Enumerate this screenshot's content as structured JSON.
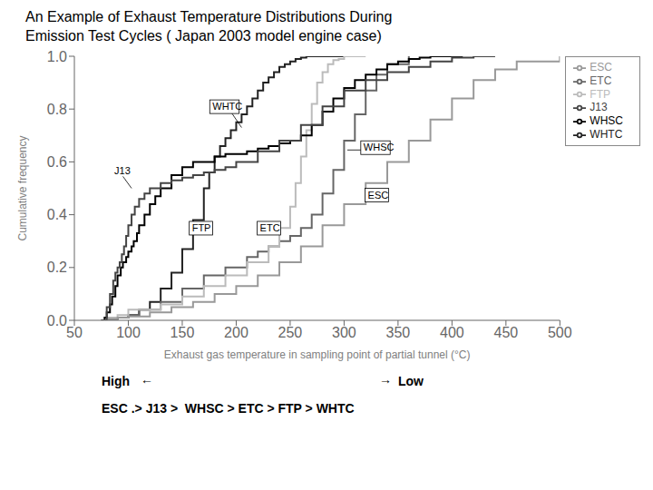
{
  "chart_data": {
    "type": "line",
    "title": "An Example of Exhaust Temperature Distributions During",
    "subtitle": "Emission Test Cycles ( Japan 2003 model engine case)",
    "x_label": "Exhaust gas temperature in sampling point of partial tunnel (°C)",
    "y_label": "Cumulative frequency",
    "xlim": [
      50,
      500
    ],
    "ylim": [
      0,
      1.0
    ],
    "xticks": [
      50,
      100,
      150,
      200,
      250,
      300,
      350,
      400,
      450,
      500
    ],
    "yticks": [
      {
        "value": 0,
        "label": "0.0"
      },
      0.2,
      0.4,
      0.6,
      0.8,
      {
        "value": 1.0,
        "label": "1.0"
      }
    ],
    "grid": false,
    "legend": "right",
    "line_style": "step",
    "series": [
      {
        "name": "WHTC",
        "color": "#222222",
        "x": [
          75,
          80,
          90,
          100,
          110,
          120,
          130,
          140,
          150,
          160,
          170,
          175,
          180,
          185,
          190,
          195,
          200,
          205,
          210,
          215,
          220,
          225,
          230,
          235,
          240,
          245,
          250,
          255,
          260,
          265,
          270,
          280,
          300
        ],
        "values": [
          0.0,
          0.005,
          0.01,
          0.02,
          0.04,
          0.07,
          0.12,
          0.18,
          0.27,
          0.38,
          0.5,
          0.56,
          0.62,
          0.66,
          0.69,
          0.72,
          0.75,
          0.78,
          0.81,
          0.84,
          0.87,
          0.9,
          0.92,
          0.94,
          0.96,
          0.97,
          0.98,
          0.99,
          0.995,
          1.0,
          1.0,
          1.0,
          1.0
        ]
      },
      {
        "name": "ETC",
        "color": "#666666",
        "x": [
          75,
          80,
          90,
          100,
          110,
          130,
          150,
          170,
          190,
          210,
          220,
          230,
          240,
          250,
          260,
          270,
          280,
          290,
          300,
          310,
          320,
          330,
          340,
          360
        ],
        "values": [
          0.0,
          0.005,
          0.01,
          0.02,
          0.04,
          0.07,
          0.12,
          0.17,
          0.2,
          0.24,
          0.26,
          0.28,
          0.3,
          0.32,
          0.35,
          0.4,
          0.48,
          0.57,
          0.68,
          0.78,
          0.87,
          0.93,
          0.97,
          1.0
        ]
      },
      {
        "name": "FTP",
        "color": "#bbbbbb",
        "x": [
          75,
          80,
          90,
          100,
          130,
          150,
          170,
          190,
          210,
          230,
          240,
          250,
          255,
          260,
          265,
          270,
          275,
          280,
          285,
          290,
          295,
          300,
          310,
          320
        ],
        "values": [
          0.0,
          0.01,
          0.02,
          0.04,
          0.06,
          0.09,
          0.13,
          0.17,
          0.22,
          0.28,
          0.35,
          0.43,
          0.52,
          0.62,
          0.72,
          0.82,
          0.9,
          0.94,
          0.97,
          0.985,
          0.99,
          1.0,
          1.0,
          1.0
        ]
      },
      {
        "name": "WHSC",
        "color": "#000000",
        "x": [
          75,
          78,
          80,
          83,
          85,
          88,
          90,
          93,
          95,
          98,
          100,
          103,
          105,
          108,
          110,
          115,
          120,
          125,
          130,
          140,
          150,
          160,
          170,
          180,
          190,
          200,
          210,
          220,
          230,
          240,
          250,
          260,
          270,
          280,
          290,
          300,
          310,
          320,
          330,
          340,
          350,
          360,
          370,
          380,
          390,
          400,
          410
        ],
        "values": [
          0.0,
          0.01,
          0.03,
          0.06,
          0.09,
          0.13,
          0.17,
          0.2,
          0.22,
          0.24,
          0.26,
          0.28,
          0.3,
          0.33,
          0.36,
          0.4,
          0.44,
          0.47,
          0.5,
          0.55,
          0.58,
          0.6,
          0.6,
          0.62,
          0.63,
          0.63,
          0.64,
          0.65,
          0.66,
          0.67,
          0.68,
          0.7,
          0.74,
          0.79,
          0.84,
          0.88,
          0.91,
          0.93,
          0.95,
          0.97,
          0.98,
          0.99,
          0.995,
          1.0,
          1.0,
          1.0,
          1.0
        ]
      },
      {
        "name": "ESC",
        "color": "#999999",
        "x": [
          75,
          80,
          90,
          100,
          120,
          140,
          160,
          180,
          200,
          220,
          240,
          260,
          280,
          300,
          320,
          340,
          360,
          380,
          400,
          420,
          440,
          460,
          500
        ],
        "values": [
          0.0,
          0.005,
          0.01,
          0.015,
          0.03,
          0.05,
          0.07,
          0.1,
          0.13,
          0.17,
          0.22,
          0.28,
          0.36,
          0.44,
          0.52,
          0.6,
          0.68,
          0.76,
          0.84,
          0.91,
          0.95,
          0.98,
          1.0
        ]
      },
      {
        "name": "J13",
        "color": "#444444",
        "x": [
          75,
          80,
          83,
          86,
          88,
          90,
          92,
          94,
          96,
          98,
          100,
          103,
          106,
          110,
          115,
          120,
          130,
          140,
          150,
          160,
          170,
          180,
          190,
          200,
          220,
          240,
          260,
          280,
          300,
          320,
          340,
          360,
          380,
          400,
          420,
          440
        ],
        "values": [
          0.0,
          0.05,
          0.1,
          0.15,
          0.18,
          0.2,
          0.22,
          0.25,
          0.28,
          0.32,
          0.36,
          0.4,
          0.43,
          0.46,
          0.48,
          0.5,
          0.52,
          0.53,
          0.54,
          0.55,
          0.56,
          0.57,
          0.58,
          0.6,
          0.64,
          0.68,
          0.74,
          0.81,
          0.87,
          0.91,
          0.94,
          0.96,
          0.98,
          0.995,
          1.0,
          1.0
        ]
      }
    ],
    "annotations": [
      "WHTC",
      "WHSC",
      "J13",
      "ESC",
      "FTP",
      "ETC",
      "High",
      "←",
      "→",
      "Low",
      "ESC .> J13 >  WHSC > ETC > FTP > WHTC"
    ]
  }
}
